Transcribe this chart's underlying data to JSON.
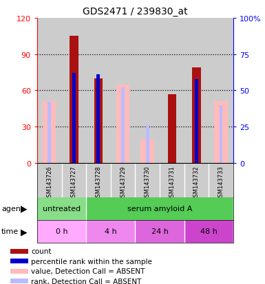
{
  "title": "GDS2471 / 239830_at",
  "samples": [
    "GSM143726",
    "GSM143727",
    "GSM143728",
    "GSM143729",
    "GSM143730",
    "GSM143731",
    "GSM143732",
    "GSM143733"
  ],
  "count_values": [
    null,
    105,
    70,
    null,
    null,
    57,
    79,
    null
  ],
  "percentile_rank": [
    null,
    62,
    61,
    null,
    null,
    null,
    58,
    null
  ],
  "absent_value": [
    51,
    null,
    null,
    65,
    20,
    null,
    null,
    51
  ],
  "absent_rank": [
    42,
    null,
    null,
    52,
    26,
    null,
    null,
    40
  ],
  "ylim_left": [
    0,
    120
  ],
  "ylim_right": [
    0,
    100
  ],
  "yticks_left": [
    0,
    30,
    60,
    90,
    120
  ],
  "yticks_right": [
    0,
    25,
    50,
    75,
    100
  ],
  "ytick_labels_left": [
    "0",
    "30",
    "60",
    "90",
    "120"
  ],
  "ytick_labels_right": [
    "0",
    "25",
    "50",
    "75",
    "100%"
  ],
  "color_count": "#aa1111",
  "color_rank": "#0000cc",
  "color_absent_value": "#ffbbbb",
  "color_absent_rank": "#bbbbff",
  "col_bg": "#cccccc",
  "agent_labels": [
    {
      "label": "untreated",
      "span": [
        0,
        2
      ],
      "color": "#88dd88"
    },
    {
      "label": "serum amyloid A",
      "span": [
        2,
        8
      ],
      "color": "#55cc55"
    }
  ],
  "time_labels": [
    {
      "label": "0 h",
      "span": [
        0,
        2
      ],
      "color": "#ffaaff"
    },
    {
      "label": "4 h",
      "span": [
        2,
        4
      ],
      "color": "#ee88ee"
    },
    {
      "label": "24 h",
      "span": [
        4,
        6
      ],
      "color": "#dd66dd"
    },
    {
      "label": "48 h",
      "span": [
        6,
        8
      ],
      "color": "#cc44cc"
    }
  ],
  "legend_items": [
    {
      "label": "count",
      "color": "#aa1111"
    },
    {
      "label": "percentile rank within the sample",
      "color": "#0000cc"
    },
    {
      "label": "value, Detection Call = ABSENT",
      "color": "#ffbbbb"
    },
    {
      "label": "rank, Detection Call = ABSENT",
      "color": "#bbbbff"
    }
  ],
  "fig_width": 3.85,
  "fig_height": 4.14,
  "dpi": 100
}
